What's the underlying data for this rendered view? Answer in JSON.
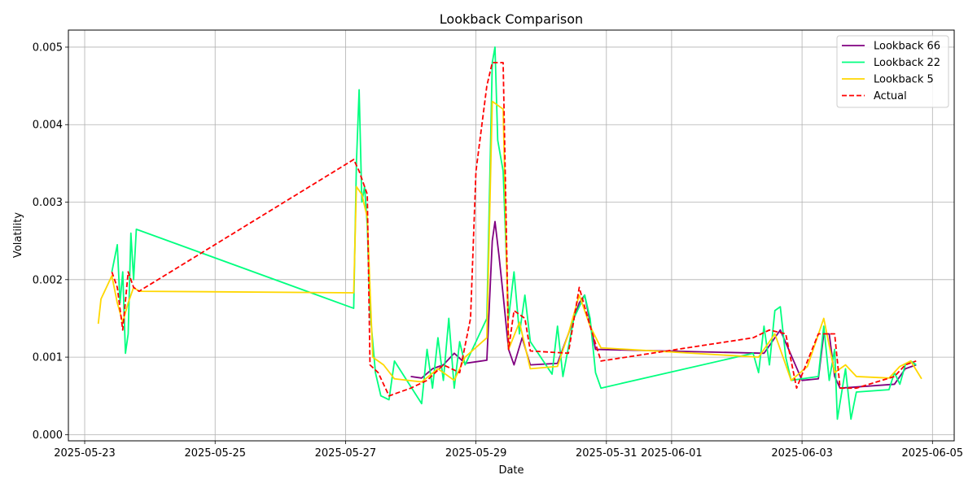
{
  "chart_data": {
    "type": "line",
    "title": "Lookback Comparison",
    "xlabel": "Date",
    "ylabel": "Volatility",
    "xlim": [
      "2023-05-22T18:00",
      "2025-06-05T08:00"
    ],
    "ylim": [
      -8e-05,
      0.00522
    ],
    "grid": true,
    "legend_position": "top-right",
    "x_ticks": [
      "2025-05-23",
      "2025-05-25",
      "2025-05-27",
      "2025-05-29",
      "2025-05-31",
      "2025-06-01",
      "2025-06-03",
      "2025-06-05"
    ],
    "y_ticks": [
      0.0,
      0.001,
      0.002,
      0.003,
      0.004,
      0.005
    ],
    "y_tick_labels": [
      "0.000",
      "0.001",
      "0.002",
      "0.003",
      "0.004",
      "0.005"
    ],
    "series": [
      {
        "name": "Lookback 66",
        "color": "#800080",
        "dash": false,
        "points": [
          [
            "2025-05-28T00:00",
            0.00075
          ],
          [
            "2025-05-28T04:00",
            0.00073
          ],
          [
            "2025-05-28T08:00",
            0.00085
          ],
          [
            "2025-05-28T12:00",
            0.0009
          ],
          [
            "2025-05-28T16:00",
            0.00105
          ],
          [
            "2025-05-28T20:00",
            0.00092
          ],
          [
            "2025-05-29T00:00",
            0.00094
          ],
          [
            "2025-05-29T04:00",
            0.00096
          ],
          [
            "2025-05-29T06:00",
            0.0025
          ],
          [
            "2025-05-29T07:00",
            0.00275
          ],
          [
            "2025-05-29T08:30",
            0.0023
          ],
          [
            "2025-05-29T10:00",
            0.0018
          ],
          [
            "2025-05-29T12:00",
            0.0011
          ],
          [
            "2025-05-29T14:00",
            0.0009
          ],
          [
            "2025-05-29T17:00",
            0.00125
          ],
          [
            "2025-05-29T20:00",
            0.0009
          ],
          [
            "2025-05-30T06:00",
            0.00092
          ],
          [
            "2025-05-30T10:00",
            0.0013
          ],
          [
            "2025-05-30T14:00",
            0.0017
          ],
          [
            "2025-05-30T16:00",
            0.0018
          ],
          [
            "2025-05-30T20:00",
            0.0011
          ],
          [
            "2025-06-02T10:00",
            0.00105
          ],
          [
            "2025-06-02T16:00",
            0.00135
          ],
          [
            "2025-06-03T00:00",
            0.0007
          ],
          [
            "2025-06-03T06:00",
            0.00072
          ],
          [
            "2025-06-03T08:00",
            0.0013
          ],
          [
            "2025-06-03T10:00",
            0.0013
          ],
          [
            "2025-06-03T12:00",
            0.00075
          ],
          [
            "2025-06-03T14:00",
            0.0006
          ],
          [
            "2025-06-04T10:00",
            0.00065
          ],
          [
            "2025-06-04T14:00",
            0.00085
          ],
          [
            "2025-06-04T18:00",
            0.0009
          ]
        ]
      },
      {
        "name": "Lookback 22",
        "color": "#00FF7F",
        "dash": false,
        "points": [
          [
            "2025-05-23T10:00",
            0.0021
          ],
          [
            "2025-05-23T12:00",
            0.00245
          ],
          [
            "2025-05-23T13:00",
            0.0017
          ],
          [
            "2025-05-23T14:00",
            0.0021
          ],
          [
            "2025-05-23T15:00",
            0.00105
          ],
          [
            "2025-05-23T16:00",
            0.0013
          ],
          [
            "2025-05-23T17:00",
            0.0026
          ],
          [
            "2025-05-23T18:00",
            0.002
          ],
          [
            "2025-05-23T19:00",
            0.00265
          ],
          [
            "2025-05-27T03:00",
            0.00163
          ],
          [
            "2025-05-27T04:00",
            0.0035
          ],
          [
            "2025-05-27T05:00",
            0.00445
          ],
          [
            "2025-05-27T06:00",
            0.003
          ],
          [
            "2025-05-27T07:00",
            0.0032
          ],
          [
            "2025-05-27T08:00",
            0.0027
          ],
          [
            "2025-05-27T09:00",
            0.0016
          ],
          [
            "2025-05-27T10:00",
            0.0012
          ],
          [
            "2025-05-27T11:00",
            0.0008
          ],
          [
            "2025-05-27T13:00",
            0.0005
          ],
          [
            "2025-05-27T16:00",
            0.00045
          ],
          [
            "2025-05-27T18:00",
            0.00095
          ],
          [
            "2025-05-28T04:00",
            0.0004
          ],
          [
            "2025-05-28T06:00",
            0.0011
          ],
          [
            "2025-05-28T08:00",
            0.0006
          ],
          [
            "2025-05-28T10:00",
            0.00125
          ],
          [
            "2025-05-28T12:00",
            0.0007
          ],
          [
            "2025-05-28T14:00",
            0.0015
          ],
          [
            "2025-05-28T16:00",
            0.0006
          ],
          [
            "2025-05-28T18:00",
            0.0012
          ],
          [
            "2025-05-28T20:00",
            0.0009
          ],
          [
            "2025-05-29T04:00",
            0.0015
          ],
          [
            "2025-05-29T06:00",
            0.0048
          ],
          [
            "2025-05-29T07:00",
            0.005
          ],
          [
            "2025-05-29T08:00",
            0.0038
          ],
          [
            "2025-05-29T10:00",
            0.0034
          ],
          [
            "2025-05-29T12:00",
            0.0015
          ],
          [
            "2025-05-29T14:00",
            0.0021
          ],
          [
            "2025-05-29T16:00",
            0.0013
          ],
          [
            "2025-05-29T18:00",
            0.0018
          ],
          [
            "2025-05-29T20:00",
            0.0012
          ],
          [
            "2025-05-30T04:00",
            0.00078
          ],
          [
            "2025-05-30T06:00",
            0.0014
          ],
          [
            "2025-05-30T08:00",
            0.00075
          ],
          [
            "2025-05-30T12:00",
            0.0015
          ],
          [
            "2025-05-30T16:00",
            0.0018
          ],
          [
            "2025-05-30T18:00",
            0.0015
          ],
          [
            "2025-05-30T20:00",
            0.0008
          ],
          [
            "2025-05-30T22:00",
            0.0006
          ],
          [
            "2025-06-02T06:00",
            0.00105
          ],
          [
            "2025-06-02T08:00",
            0.0008
          ],
          [
            "2025-06-02T10:00",
            0.0014
          ],
          [
            "2025-06-02T12:00",
            0.0009
          ],
          [
            "2025-06-02T14:00",
            0.0016
          ],
          [
            "2025-06-02T16:00",
            0.00165
          ],
          [
            "2025-06-02T18:00",
            0.001
          ],
          [
            "2025-06-02T20:00",
            0.0007
          ],
          [
            "2025-06-03T06:00",
            0.00075
          ],
          [
            "2025-06-03T08:00",
            0.0014
          ],
          [
            "2025-06-03T10:00",
            0.0007
          ],
          [
            "2025-06-03T12:00",
            0.0011
          ],
          [
            "2025-06-03T13:00",
            0.0002
          ],
          [
            "2025-06-03T16:00",
            0.00085
          ],
          [
            "2025-06-03T18:00",
            0.0002
          ],
          [
            "2025-06-03T20:00",
            0.00055
          ],
          [
            "2025-06-04T08:00",
            0.00058
          ],
          [
            "2025-06-04T10:00",
            0.0008
          ],
          [
            "2025-06-04T12:00",
            0.00065
          ],
          [
            "2025-06-04T14:00",
            0.0009
          ],
          [
            "2025-06-04T16:00",
            0.00095
          ],
          [
            "2025-06-04T18:00",
            0.0009
          ]
        ]
      },
      {
        "name": "Lookback 5",
        "color": "#FFD700",
        "dash": false,
        "points": [
          [
            "2025-05-23T05:00",
            0.00143
          ],
          [
            "2025-05-23T06:00",
            0.00175
          ],
          [
            "2025-05-23T08:00",
            0.0019
          ],
          [
            "2025-05-23T10:00",
            0.00205
          ],
          [
            "2025-05-23T12:00",
            0.0017
          ],
          [
            "2025-05-23T14:00",
            0.00145
          ],
          [
            "2025-05-23T16:00",
            0.0017
          ],
          [
            "2025-05-23T18:00",
            0.0019
          ],
          [
            "2025-05-23T20:00",
            0.00185
          ],
          [
            "2025-05-27T03:00",
            0.00183
          ],
          [
            "2025-05-27T04:00",
            0.0032
          ],
          [
            "2025-05-27T06:00",
            0.0031
          ],
          [
            "2025-05-27T08:00",
            0.0028
          ],
          [
            "2025-05-27T10:00",
            0.001
          ],
          [
            "2025-05-27T14:00",
            0.0009
          ],
          [
            "2025-05-27T18:00",
            0.00072
          ],
          [
            "2025-05-28T04:00",
            0.00068
          ],
          [
            "2025-05-28T10:00",
            0.00085
          ],
          [
            "2025-05-28T16:00",
            0.0007
          ],
          [
            "2025-05-28T20:00",
            0.001
          ],
          [
            "2025-05-29T04:00",
            0.00125
          ],
          [
            "2025-05-29T06:00",
            0.0043
          ],
          [
            "2025-05-29T10:00",
            0.0042
          ],
          [
            "2025-05-29T12:00",
            0.0011
          ],
          [
            "2025-05-29T16:00",
            0.00145
          ],
          [
            "2025-05-29T20:00",
            0.00085
          ],
          [
            "2025-05-30T06:00",
            0.00088
          ],
          [
            "2025-05-30T10:00",
            0.0013
          ],
          [
            "2025-05-30T14:00",
            0.0018
          ],
          [
            "2025-05-30T18:00",
            0.0014
          ],
          [
            "2025-05-30T22:00",
            0.00112
          ],
          [
            "2025-06-02T08:00",
            0.001
          ],
          [
            "2025-06-02T14:00",
            0.0013
          ],
          [
            "2025-06-02T20:00",
            0.0007
          ],
          [
            "2025-06-03T02:00",
            0.00088
          ],
          [
            "2025-06-03T08:00",
            0.0015
          ],
          [
            "2025-06-03T12:00",
            0.0008
          ],
          [
            "2025-06-03T16:00",
            0.0009
          ],
          [
            "2025-06-03T20:00",
            0.00075
          ],
          [
            "2025-06-04T08:00",
            0.00073
          ],
          [
            "2025-06-04T12:00",
            0.00088
          ],
          [
            "2025-06-04T16:00",
            0.00095
          ],
          [
            "2025-06-04T20:00",
            0.00072
          ]
        ]
      },
      {
        "name": "Actual",
        "color": "#FF0000",
        "dash": true,
        "points": [
          [
            "2025-05-23T10:00",
            0.0021
          ],
          [
            "2025-05-23T12:00",
            0.0019
          ],
          [
            "2025-05-23T14:00",
            0.00135
          ],
          [
            "2025-05-23T16:00",
            0.0021
          ],
          [
            "2025-05-23T18:00",
            0.0019
          ],
          [
            "2025-05-23T20:00",
            0.00185
          ],
          [
            "2025-05-27T03:00",
            0.00355
          ],
          [
            "2025-05-27T05:00",
            0.0034
          ],
          [
            "2025-05-27T08:00",
            0.0031
          ],
          [
            "2025-05-27T09:00",
            0.0009
          ],
          [
            "2025-05-27T12:00",
            0.0008
          ],
          [
            "2025-05-27T16:00",
            0.0005
          ],
          [
            "2025-05-28T00:00",
            0.0006
          ],
          [
            "2025-05-28T06:00",
            0.0007
          ],
          [
            "2025-05-28T12:00",
            0.0009
          ],
          [
            "2025-05-28T18:00",
            0.0008
          ],
          [
            "2025-05-28T22:00",
            0.0015
          ],
          [
            "2025-05-29T00:00",
            0.0034
          ],
          [
            "2025-05-29T04:00",
            0.0045
          ],
          [
            "2025-05-29T06:00",
            0.0048
          ],
          [
            "2025-05-29T10:00",
            0.0048
          ],
          [
            "2025-05-29T12:00",
            0.0011
          ],
          [
            "2025-05-29T14:00",
            0.0016
          ],
          [
            "2025-05-29T18:00",
            0.0015
          ],
          [
            "2025-05-29T20:00",
            0.00108
          ],
          [
            "2025-05-30T10:00",
            0.00105
          ],
          [
            "2025-05-30T14:00",
            0.0019
          ],
          [
            "2025-05-30T18:00",
            0.0014
          ],
          [
            "2025-05-30T22:00",
            0.00095
          ],
          [
            "2025-06-02T06:00",
            0.00125
          ],
          [
            "2025-06-02T12:00",
            0.00135
          ],
          [
            "2025-06-02T18:00",
            0.0013
          ],
          [
            "2025-06-02T22:00",
            0.0006
          ],
          [
            "2025-06-03T06:00",
            0.0013
          ],
          [
            "2025-06-03T12:00",
            0.0013
          ],
          [
            "2025-06-03T14:00",
            0.0006
          ],
          [
            "2025-06-03T20:00",
            0.0006
          ],
          [
            "2025-06-04T10:00",
            0.00075
          ],
          [
            "2025-06-04T14:00",
            0.0009
          ],
          [
            "2025-06-04T18:00",
            0.00095
          ]
        ]
      }
    ]
  }
}
